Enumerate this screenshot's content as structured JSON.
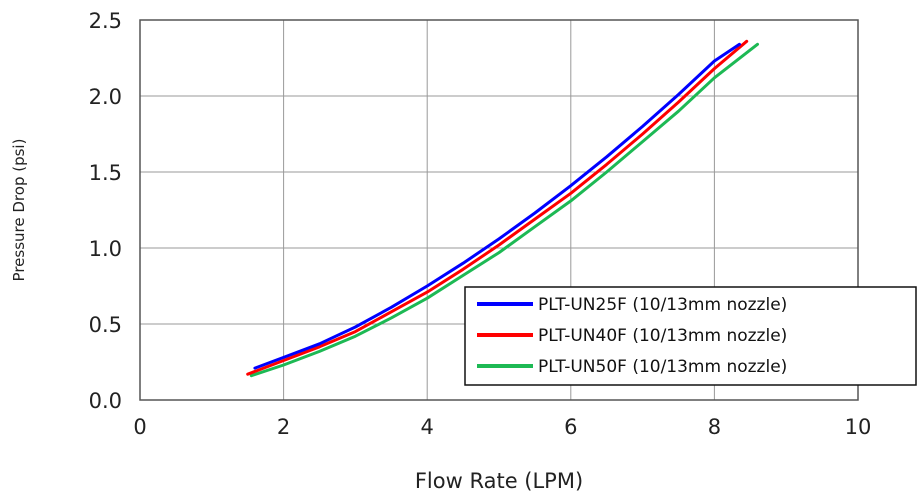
{
  "chart_data": {
    "type": "line",
    "title": "",
    "xlabel": "Flow Rate (LPM)",
    "ylabel": "Pressure Drop (psi)",
    "xlim": [
      0,
      10
    ],
    "ylim": [
      0,
      2.5
    ],
    "xticks": [
      0,
      2,
      4,
      6,
      8,
      10
    ],
    "xtick_labels": [
      "0",
      "2",
      "4",
      "6",
      "8",
      "10"
    ],
    "yticks": [
      0,
      0.5,
      1.0,
      1.5,
      2.0,
      2.5
    ],
    "ytick_labels": [
      "0.0",
      "0.5",
      "1.0",
      "1.5",
      "2.0",
      "2.5"
    ],
    "grid": true,
    "legend_position": "bottom-right",
    "series": [
      {
        "name": "PLT-UN25F (10/13mm nozzle)",
        "color": "#0000ff",
        "x": [
          1.6,
          2.0,
          2.5,
          3.0,
          3.5,
          4.0,
          4.5,
          5.0,
          5.5,
          6.0,
          6.5,
          7.0,
          7.5,
          8.0,
          8.35
        ],
        "y": [
          0.21,
          0.28,
          0.37,
          0.48,
          0.61,
          0.75,
          0.9,
          1.06,
          1.23,
          1.41,
          1.6,
          1.8,
          2.01,
          2.23,
          2.34
        ]
      },
      {
        "name": "PLT-UN40F (10/13mm nozzle)",
        "color": "#ff0000",
        "x": [
          1.5,
          2.0,
          2.5,
          3.0,
          3.5,
          4.0,
          4.5,
          5.0,
          5.5,
          6.0,
          6.5,
          7.0,
          7.5,
          8.0,
          8.45
        ],
        "y": [
          0.17,
          0.26,
          0.35,
          0.45,
          0.58,
          0.71,
          0.86,
          1.02,
          1.19,
          1.36,
          1.55,
          1.75,
          1.96,
          2.18,
          2.36
        ]
      },
      {
        "name": "PLT-UN50F (10/13mm nozzle)",
        "color": "#1db954",
        "x": [
          1.55,
          2.0,
          2.5,
          3.0,
          3.5,
          4.0,
          4.5,
          5.0,
          5.5,
          6.0,
          6.5,
          7.0,
          7.5,
          8.0,
          8.6
        ],
        "y": [
          0.16,
          0.23,
          0.32,
          0.42,
          0.54,
          0.67,
          0.82,
          0.97,
          1.14,
          1.31,
          1.5,
          1.7,
          1.9,
          2.12,
          2.34
        ]
      }
    ]
  }
}
